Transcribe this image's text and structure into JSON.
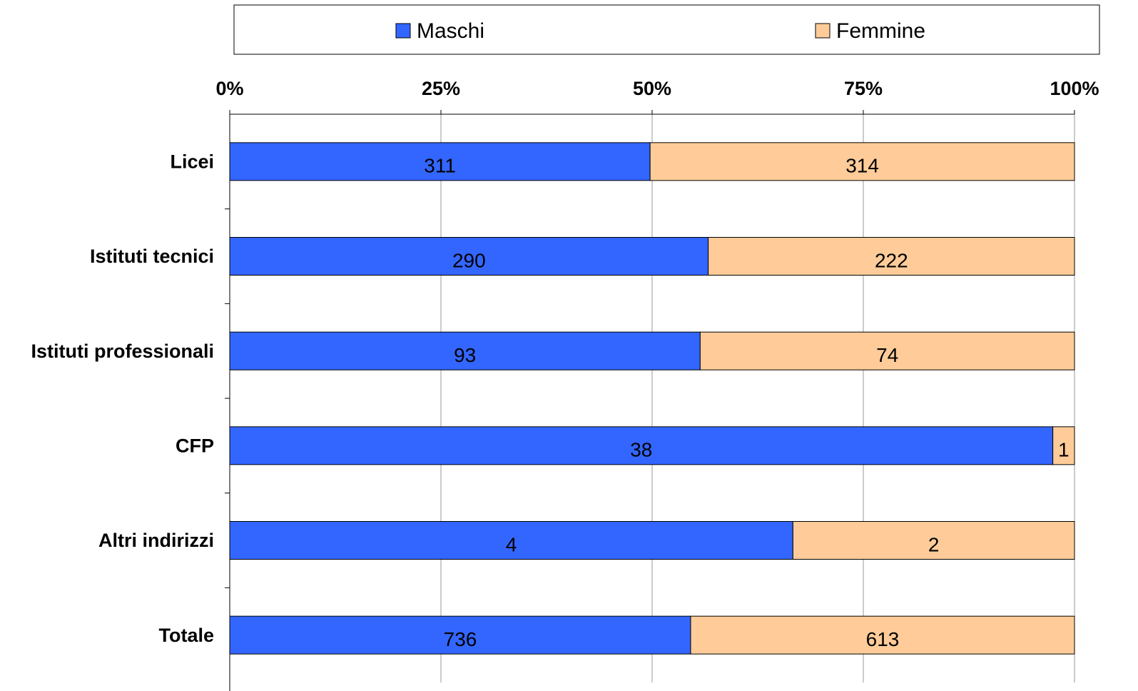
{
  "chart_data": {
    "type": "bar",
    "orientation": "horizontal",
    "stacking": "percent",
    "categories": [
      "Licei",
      "Istituti tecnici",
      "Istituti professionali",
      "CFP",
      "Altri indirizzi",
      "Totale"
    ],
    "series": [
      {
        "name": "Maschi",
        "color": "#3366ff",
        "values": [
          311,
          290,
          93,
          38,
          4,
          736
        ]
      },
      {
        "name": "Femmine",
        "color": "#ffcc99",
        "values": [
          314,
          222,
          74,
          1,
          2,
          613
        ]
      }
    ],
    "xlim": [
      0,
      100
    ],
    "xticks": [
      {
        "value": 0,
        "label": "0%"
      },
      {
        "value": 25,
        "label": "25%"
      },
      {
        "value": 50,
        "label": "50%"
      },
      {
        "value": 75,
        "label": "75%"
      },
      {
        "value": 100,
        "label": "100%"
      }
    ],
    "grid": true,
    "legend": "top"
  }
}
